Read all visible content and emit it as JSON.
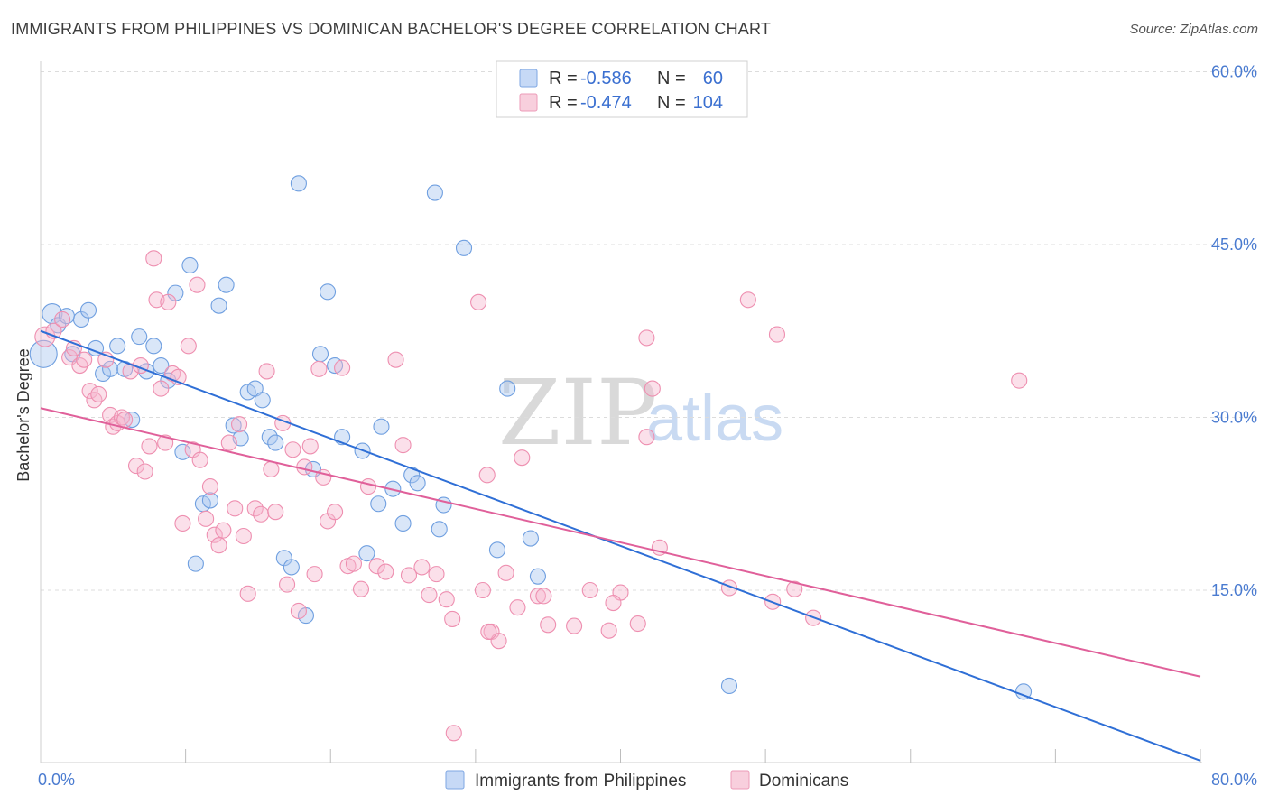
{
  "title": "IMMIGRANTS FROM PHILIPPINES VS DOMINICAN BACHELOR'S DEGREE CORRELATION CHART",
  "source": "Source: ZipAtlas.com",
  "watermark": {
    "zip": "ZIP",
    "atlas": "atlas"
  },
  "colors": {
    "blue": "#6f9fe0",
    "pink": "#ee8fb0",
    "blue_line": "#2f6fd6",
    "pink_line": "#e0609a",
    "axis_label": "#4a7bd0"
  },
  "legend": {
    "rows": [
      {
        "r_label": "R =",
        "r_value": "-0.586",
        "n_label": "N =",
        "n_value": "60"
      },
      {
        "r_label": "R =",
        "r_value": "-0.474",
        "n_label": "N =",
        "n_value": "104"
      }
    ]
  },
  "chart_data": {
    "type": "scatter",
    "title": "IMMIGRANTS FROM PHILIPPINES VS DOMINICAN BACHELOR'S DEGREE CORRELATION CHART",
    "xlabel": "",
    "ylabel": "Bachelor's Degree",
    "xlim": [
      0,
      80
    ],
    "ylim": [
      0,
      62
    ],
    "x_tick_labels": [
      "0.0%",
      "80.0%"
    ],
    "y_ticks": [
      15,
      30,
      45,
      60
    ],
    "y_tick_labels": [
      "15.0%",
      "30.0%",
      "45.0%",
      "60.0%"
    ],
    "grid": true,
    "legend_position": "top-center",
    "series": [
      {
        "name": "Immigrants from Philippines",
        "color": "#6f9fe0",
        "trend": {
          "x": [
            0,
            80
          ],
          "y": [
            37.5,
            0.2
          ]
        },
        "points": [
          [
            0.2,
            35.5
          ],
          [
            0.8,
            39
          ],
          [
            1.2,
            38
          ],
          [
            1.8,
            38.8
          ],
          [
            2.2,
            35.5
          ],
          [
            2.8,
            38.5
          ],
          [
            3.3,
            39.3
          ],
          [
            3.8,
            36
          ],
          [
            4.3,
            33.8
          ],
          [
            4.8,
            34.2
          ],
          [
            5.3,
            36.2
          ],
          [
            5.8,
            34.2
          ],
          [
            6.3,
            29.8
          ],
          [
            6.8,
            37
          ],
          [
            7.3,
            34
          ],
          [
            7.8,
            36.2
          ],
          [
            8.3,
            34.5
          ],
          [
            8.8,
            33.2
          ],
          [
            9.3,
            40.8
          ],
          [
            9.8,
            27
          ],
          [
            10.3,
            43.2
          ],
          [
            10.7,
            17.3
          ],
          [
            11.2,
            22.5
          ],
          [
            11.7,
            22.8
          ],
          [
            12.3,
            39.7
          ],
          [
            12.8,
            41.5
          ],
          [
            13.3,
            29.3
          ],
          [
            13.8,
            28.2
          ],
          [
            14.3,
            32.2
          ],
          [
            14.8,
            32.5
          ],
          [
            15.3,
            31.5
          ],
          [
            15.8,
            28.3
          ],
          [
            16.2,
            27.8
          ],
          [
            16.8,
            17.8
          ],
          [
            17.3,
            17
          ],
          [
            17.8,
            50.3
          ],
          [
            18.3,
            12.8
          ],
          [
            18.8,
            25.5
          ],
          [
            19.3,
            35.5
          ],
          [
            19.8,
            40.9
          ],
          [
            20.3,
            34.5
          ],
          [
            20.8,
            28.3
          ],
          [
            22.2,
            27.1
          ],
          [
            22.5,
            18.2
          ],
          [
            23.3,
            22.5
          ],
          [
            23.5,
            29.2
          ],
          [
            24.3,
            23.8
          ],
          [
            25,
            20.8
          ],
          [
            25.6,
            25
          ],
          [
            26,
            24.3
          ],
          [
            27.2,
            49.5
          ],
          [
            27.5,
            20.3
          ],
          [
            27.8,
            22.4
          ],
          [
            29.2,
            44.7
          ],
          [
            31.5,
            18.5
          ],
          [
            32.2,
            32.5
          ],
          [
            33.8,
            19.5
          ],
          [
            34.3,
            16.2
          ],
          [
            47.5,
            6.7
          ],
          [
            67.8,
            6.2
          ]
        ]
      },
      {
        "name": "Dominicans",
        "color": "#ee8fb0",
        "trend": {
          "x": [
            0,
            80
          ],
          "y": [
            30.8,
            7.5
          ]
        },
        "points": [
          [
            0.3,
            37
          ],
          [
            0.9,
            37.5
          ],
          [
            1.5,
            38.5
          ],
          [
            2,
            35.2
          ],
          [
            2.3,
            36
          ],
          [
            2.7,
            34.5
          ],
          [
            3,
            35
          ],
          [
            3.4,
            32.3
          ],
          [
            3.7,
            31.5
          ],
          [
            4,
            32
          ],
          [
            4.5,
            35
          ],
          [
            4.8,
            30.2
          ],
          [
            5,
            29.2
          ],
          [
            5.3,
            29.5
          ],
          [
            5.6,
            30
          ],
          [
            5.8,
            29.8
          ],
          [
            6.2,
            34
          ],
          [
            6.6,
            25.8
          ],
          [
            6.9,
            34.5
          ],
          [
            7.2,
            25.3
          ],
          [
            7.5,
            27.5
          ],
          [
            7.8,
            43.8
          ],
          [
            8,
            40.2
          ],
          [
            8.3,
            32.5
          ],
          [
            8.6,
            27.8
          ],
          [
            8.8,
            40
          ],
          [
            9.1,
            33.8
          ],
          [
            9.5,
            33.5
          ],
          [
            9.8,
            20.8
          ],
          [
            10.2,
            36.2
          ],
          [
            10.5,
            27.2
          ],
          [
            10.8,
            41.5
          ],
          [
            11,
            26.3
          ],
          [
            11.4,
            21.2
          ],
          [
            11.7,
            24
          ],
          [
            12,
            19.8
          ],
          [
            12.3,
            18.9
          ],
          [
            12.6,
            20.2
          ],
          [
            13,
            27.8
          ],
          [
            13.4,
            22.1
          ],
          [
            13.7,
            29.4
          ],
          [
            14,
            19.7
          ],
          [
            14.3,
            14.7
          ],
          [
            14.8,
            22.1
          ],
          [
            15.2,
            21.6
          ],
          [
            15.6,
            34
          ],
          [
            15.9,
            25.5
          ],
          [
            16.2,
            21.8
          ],
          [
            16.7,
            29.5
          ],
          [
            17,
            15.5
          ],
          [
            17.4,
            27.2
          ],
          [
            17.8,
            13.2
          ],
          [
            18.2,
            25.7
          ],
          [
            18.6,
            27.5
          ],
          [
            18.9,
            16.4
          ],
          [
            19.2,
            34.2
          ],
          [
            19.5,
            24.8
          ],
          [
            19.8,
            21
          ],
          [
            20.3,
            21.8
          ],
          [
            20.8,
            34.3
          ],
          [
            21.2,
            17.1
          ],
          [
            21.6,
            17.3
          ],
          [
            22.1,
            15.1
          ],
          [
            22.6,
            24
          ],
          [
            23.2,
            17.1
          ],
          [
            23.8,
            16.6
          ],
          [
            24.5,
            35
          ],
          [
            25,
            27.6
          ],
          [
            25.4,
            16.3
          ],
          [
            26.3,
            17
          ],
          [
            26.8,
            14.6
          ],
          [
            27.3,
            16.4
          ],
          [
            28,
            14.2
          ],
          [
            28.4,
            12.5
          ],
          [
            30.2,
            40
          ],
          [
            30.5,
            15
          ],
          [
            30.8,
            25
          ],
          [
            31.1,
            11.4
          ],
          [
            31.6,
            10.6
          ],
          [
            32.1,
            16.5
          ],
          [
            32.9,
            13.5
          ],
          [
            33.2,
            26.5
          ],
          [
            34.3,
            14.5
          ],
          [
            34.7,
            14.5
          ],
          [
            35,
            12
          ],
          [
            36.8,
            11.9
          ],
          [
            37.9,
            15
          ],
          [
            39.2,
            11.5
          ],
          [
            40,
            14.8
          ],
          [
            41.2,
            12.1
          ],
          [
            41.8,
            36.9
          ],
          [
            42.2,
            32.5
          ],
          [
            42.7,
            18.7
          ],
          [
            28.5,
            2.6
          ],
          [
            47.5,
            15.2
          ],
          [
            48.8,
            40.2
          ],
          [
            50.8,
            37.2
          ],
          [
            52,
            15.1
          ],
          [
            53.3,
            12.6
          ],
          [
            67.5,
            33.2
          ],
          [
            39.5,
            13.9
          ],
          [
            41.8,
            28.3
          ],
          [
            30.9,
            11.4
          ],
          [
            50.5,
            14
          ]
        ]
      }
    ]
  }
}
